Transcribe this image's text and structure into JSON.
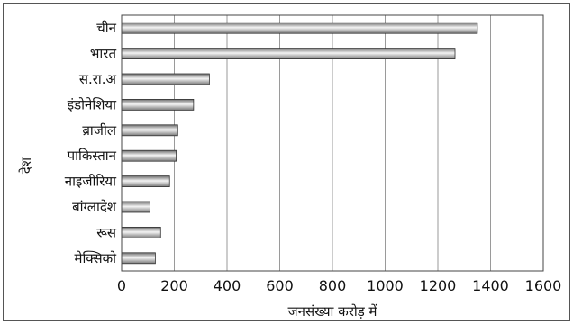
{
  "chart_data": {
    "type": "bar",
    "orientation": "horizontal",
    "categories": [
      "चीन",
      "भारत",
      "स.रा.अ",
      "इंडोनेशिया",
      "ब्राजील",
      "पाकिस्तान",
      "नाइजीरिया",
      "बांग्लादेश",
      "रूस",
      "मेक्सिको"
    ],
    "values": [
      1350,
      1265,
      333,
      273,
      213,
      207,
      182,
      108,
      148,
      128
    ],
    "xlabel": "जनसंख्या करोड़ में",
    "ylabel": "देश",
    "xlim": [
      0,
      1600
    ],
    "xticks": [
      "0",
      "200",
      "400",
      "600",
      "800",
      "1000",
      "1200",
      "1400",
      "1600"
    ],
    "grid": "vertical",
    "colors": {
      "bar_dark": "#8a8a8a",
      "bar_light": "#f2f2f2",
      "grid": "#9a9a9a",
      "bar_stroke": "#333333"
    }
  }
}
